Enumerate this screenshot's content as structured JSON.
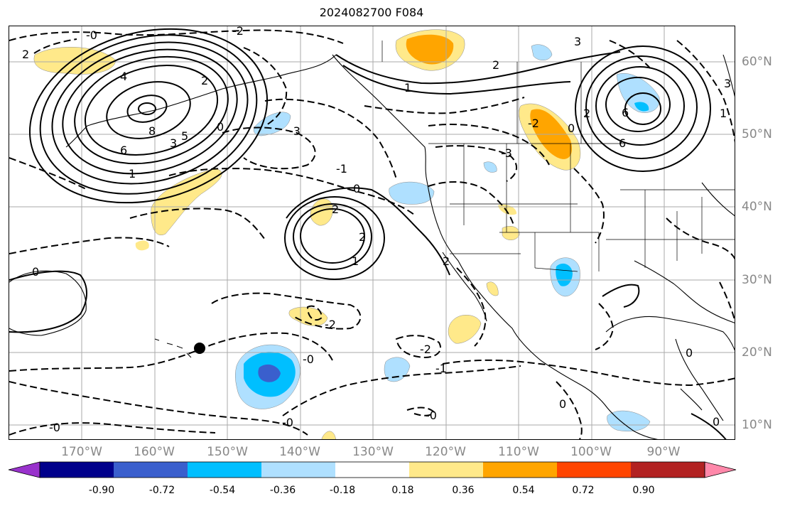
{
  "title": "2024082700 F084",
  "longitude_labels": [
    "170°W",
    "160°W",
    "150°W",
    "140°W",
    "130°W",
    "120°W",
    "110°W",
    "100°W",
    "90°W"
  ],
  "latitude_labels": [
    "60°N",
    "50°N",
    "40°N",
    "30°N",
    "20°N",
    "10°N"
  ],
  "contour_labels": {
    "aleutian_low": [
      "4",
      "8",
      "6",
      "1",
      "3",
      "5",
      "0",
      "2",
      "2"
    ],
    "east_pacific_low": [
      "0",
      "2",
      "2",
      "1",
      "2"
    ],
    "canada_low": [
      "1",
      "2",
      "3",
      "6",
      "0",
      "6"
    ],
    "negative": [
      "-0",
      "-2",
      "-2",
      "-3",
      "-3",
      "-1",
      "-2",
      "-2",
      "-1",
      "-0",
      "-0",
      "-0",
      "-0"
    ],
    "misc": [
      "0",
      "0",
      "0",
      "0",
      "3",
      "1",
      "2"
    ]
  },
  "colorbar": {
    "ticks": [
      "-0.90",
      "-0.72",
      "-0.54",
      "-0.36",
      "-0.18",
      "0.18",
      "0.36",
      "0.54",
      "0.72",
      "0.90"
    ],
    "colors": [
      "#9932cc",
      "#00008b",
      "#3a5fcd",
      "#00bfff",
      "#afe0ff",
      "#ffffff",
      "#ffe98a",
      "#ffa500",
      "#ff4500",
      "#b22222",
      "#ff88aa"
    ],
    "extend": "both"
  },
  "markers": [
    {
      "name": "hawaii-dot",
      "color": "#000000"
    }
  ],
  "grid": true
}
